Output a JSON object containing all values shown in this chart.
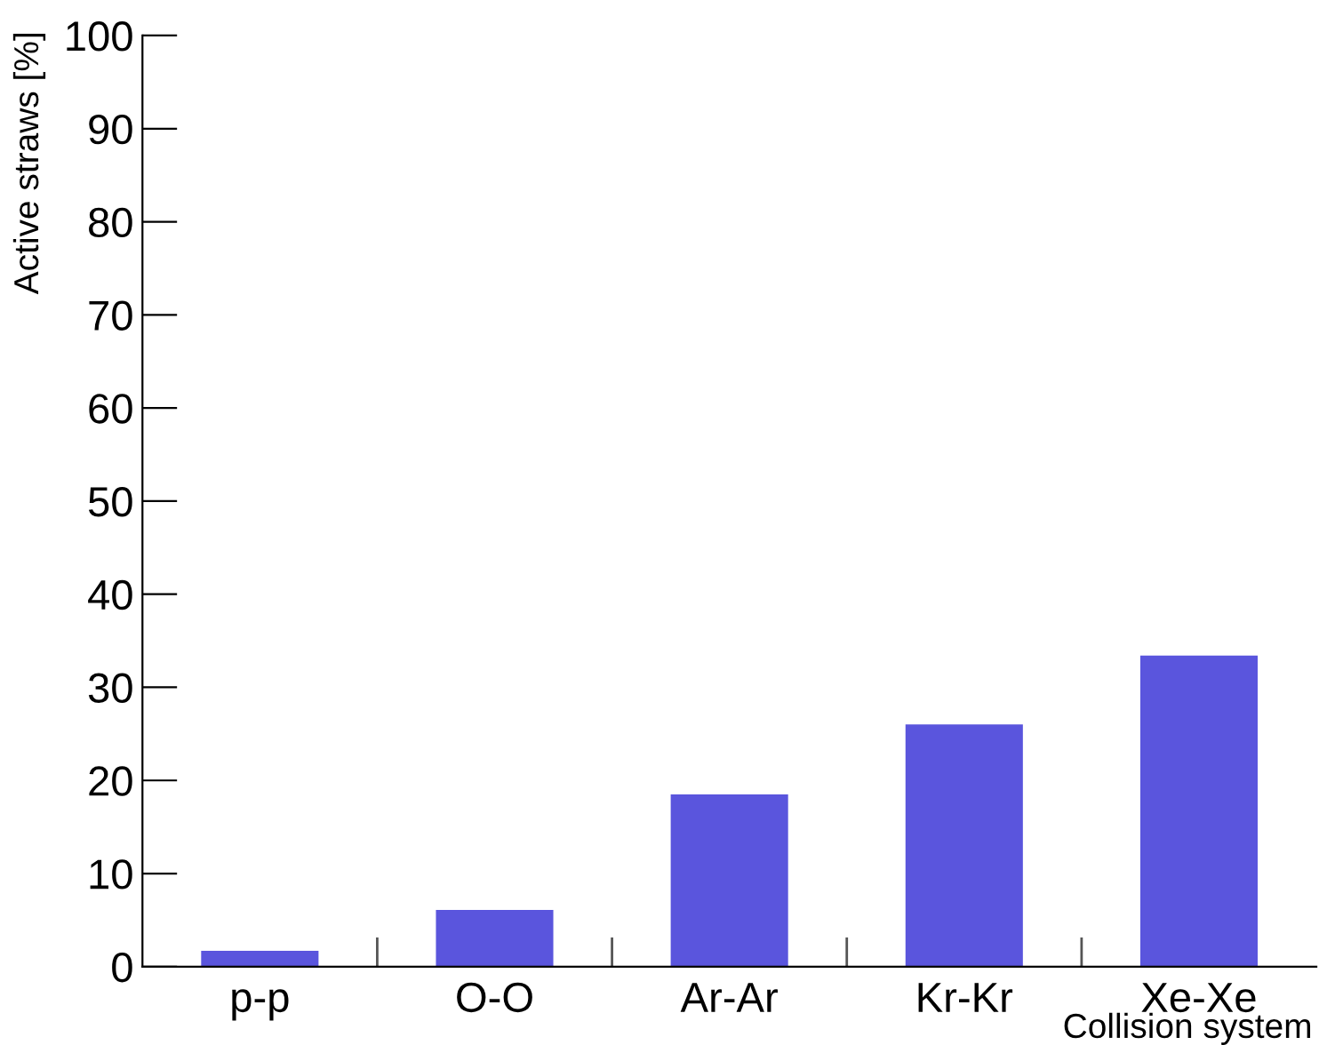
{
  "chart_data": {
    "type": "bar",
    "xlabel": "Collision system",
    "ylabel": "Active straws [%]",
    "categories": [
      "p-p",
      "O-O",
      "Ar-Ar",
      "Kr-Kr",
      "Xe-Xe"
    ],
    "values": [
      1.7,
      6.1,
      18.5,
      26.0,
      33.4
    ],
    "color": "#5a55dd",
    "ylim": [
      0,
      100
    ],
    "yticks": [
      0,
      10,
      20,
      30,
      40,
      50,
      60,
      70,
      80,
      90,
      100
    ],
    "grid": false,
    "legend": false
  }
}
